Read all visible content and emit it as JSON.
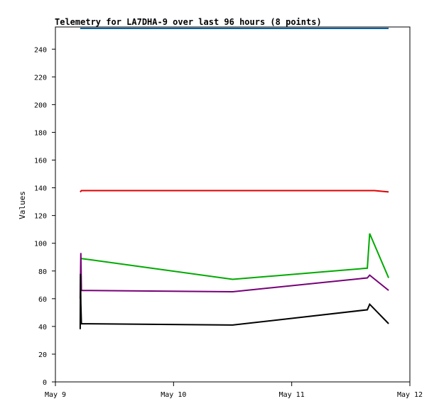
{
  "chart_data": {
    "type": "line",
    "title": "Telemetry for LA7DHA-9 over last 96 hours (8 points)",
    "xlabel": "",
    "ylabel": "Values",
    "xlim": [
      0,
      3
    ],
    "ylim": [
      0,
      256
    ],
    "x_ticks": [
      {
        "value": 0,
        "label": "May 9"
      },
      {
        "value": 1,
        "label": "May 10"
      },
      {
        "value": 2,
        "label": "May 11"
      },
      {
        "value": 3,
        "label": "May 12"
      }
    ],
    "y_ticks": [
      0,
      20,
      40,
      60,
      80,
      100,
      120,
      140,
      160,
      180,
      200,
      220,
      240
    ],
    "grid": false,
    "series": [
      {
        "color": "#0060a0",
        "x": [
          0.21,
          2.82
        ],
        "y": [
          255,
          255
        ]
      },
      {
        "color": "#dd0000",
        "x": [
          0.21,
          0.22,
          1.5,
          2.7,
          2.82
        ],
        "y": [
          137,
          138,
          138,
          138,
          137
        ]
      },
      {
        "color": "#00aa00",
        "x": [
          0.22,
          1.5,
          2.64,
          2.66,
          2.82
        ],
        "y": [
          89,
          74,
          82,
          107,
          75
        ]
      },
      {
        "color": "#770077",
        "x": [
          0.21,
          0.215,
          0.22,
          1.5,
          2.64,
          2.66,
          2.82
        ],
        "y": [
          60,
          93,
          66,
          65,
          75,
          77,
          66
        ]
      },
      {
        "color": "#000000",
        "x": [
          0.21,
          0.212,
          0.215,
          0.22,
          1.5,
          2.64,
          2.66,
          2.82
        ],
        "y": [
          38,
          78,
          57,
          42,
          41,
          52,
          56,
          42
        ]
      }
    ]
  }
}
